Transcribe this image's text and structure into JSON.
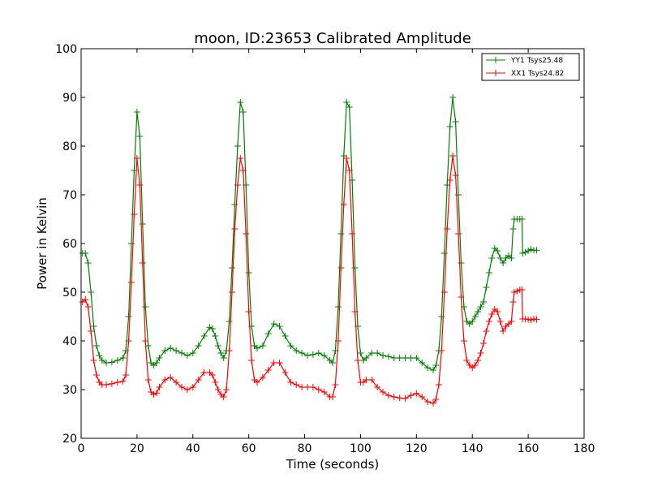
{
  "chart_data": {
    "type": "line",
    "title": "moon, ID:23653 Calibrated Amplitude",
    "xlabel": "Time (seconds)",
    "ylabel": "Power in Kelvin",
    "xlim": [
      0,
      180
    ],
    "ylim": [
      20,
      100
    ],
    "xticks": [
      "0",
      "20",
      "40",
      "60",
      "80",
      "100",
      "120",
      "140",
      "160",
      "180"
    ],
    "yticks": [
      "20",
      "30",
      "40",
      "50",
      "60",
      "70",
      "80",
      "90",
      "100"
    ],
    "grid": false,
    "legend": "top-right",
    "marker": "+",
    "series": [
      {
        "name": "YY1 Tsys25.48",
        "color": "#008000",
        "points": [
          [
            0.5,
            58
          ],
          [
            1.5,
            58
          ],
          [
            2.5,
            56
          ],
          [
            3.5,
            50
          ],
          [
            4.5,
            43
          ],
          [
            5.5,
            39
          ],
          [
            6.5,
            37
          ],
          [
            7.5,
            36
          ],
          [
            9,
            35.5
          ],
          [
            11,
            35.6
          ],
          [
            13,
            36
          ],
          [
            15,
            36.5
          ],
          [
            16,
            38
          ],
          [
            17,
            45
          ],
          [
            18,
            60
          ],
          [
            19,
            75
          ],
          [
            20,
            87
          ],
          [
            21,
            82
          ],
          [
            22,
            64
          ],
          [
            23,
            47
          ],
          [
            24,
            39
          ],
          [
            25,
            35.5
          ],
          [
            26,
            35
          ],
          [
            27,
            35.5
          ],
          [
            28,
            36.5
          ],
          [
            30,
            38
          ],
          [
            32,
            38.5
          ],
          [
            34,
            38
          ],
          [
            36,
            37.5
          ],
          [
            38,
            37
          ],
          [
            40,
            37.5
          ],
          [
            42,
            39
          ],
          [
            44,
            41
          ],
          [
            46,
            42.8
          ],
          [
            47,
            42.5
          ],
          [
            48,
            41
          ],
          [
            49,
            39
          ],
          [
            50,
            37.5
          ],
          [
            51,
            36.5
          ],
          [
            52,
            38
          ],
          [
            53,
            44
          ],
          [
            54,
            55
          ],
          [
            55,
            68
          ],
          [
            56,
            80
          ],
          [
            57,
            89
          ],
          [
            58,
            87
          ],
          [
            59,
            72
          ],
          [
            60,
            54
          ],
          [
            61,
            43
          ],
          [
            62,
            39
          ],
          [
            63,
            38.5
          ],
          [
            65,
            39
          ],
          [
            67,
            41.5
          ],
          [
            69,
            43.5
          ],
          [
            71,
            43
          ],
          [
            73,
            41
          ],
          [
            75,
            39
          ],
          [
            77,
            38
          ],
          [
            79,
            37.5
          ],
          [
            81,
            37
          ],
          [
            83,
            37.2
          ],
          [
            85,
            37.5
          ],
          [
            87,
            37
          ],
          [
            89,
            36
          ],
          [
            90,
            35.5
          ],
          [
            91,
            38
          ],
          [
            92,
            47
          ],
          [
            93,
            62
          ],
          [
            94,
            78
          ],
          [
            95,
            89
          ],
          [
            96,
            88
          ],
          [
            97,
            73
          ],
          [
            98,
            55
          ],
          [
            99,
            43
          ],
          [
            100,
            37.5
          ],
          [
            101,
            36
          ],
          [
            102,
            36.5
          ],
          [
            104,
            37.5
          ],
          [
            106,
            37.5
          ],
          [
            108,
            37
          ],
          [
            110,
            36.8
          ],
          [
            112,
            36.5
          ],
          [
            114,
            36.5
          ],
          [
            116,
            36.5
          ],
          [
            118,
            36.5
          ],
          [
            120,
            36.5
          ],
          [
            122,
            35.5
          ],
          [
            124,
            34.5
          ],
          [
            126,
            34
          ],
          [
            127,
            35
          ],
          [
            128,
            38
          ],
          [
            129,
            45
          ],
          [
            130,
            58
          ],
          [
            131,
            72
          ],
          [
            132,
            84
          ],
          [
            133,
            90
          ],
          [
            134,
            85
          ],
          [
            135,
            70
          ],
          [
            136,
            56
          ],
          [
            137,
            47
          ],
          [
            138,
            44
          ],
          [
            139,
            43.5
          ],
          [
            140,
            44
          ],
          [
            141,
            45
          ],
          [
            142,
            46
          ],
          [
            143,
            47
          ],
          [
            144,
            48
          ],
          [
            145,
            51
          ],
          [
            146,
            54
          ],
          [
            147,
            57
          ],
          [
            148,
            59
          ],
          [
            149,
            58.5
          ],
          [
            150,
            57
          ],
          [
            151,
            56
          ],
          [
            152,
            57
          ],
          [
            153,
            57.5
          ],
          [
            154,
            57
          ],
          [
            154.6,
            63
          ],
          [
            155,
            65
          ],
          [
            156,
            65
          ],
          [
            157,
            65
          ],
          [
            157.8,
            65
          ],
          [
            158,
            58
          ],
          [
            159,
            58.2
          ],
          [
            160,
            58.5
          ],
          [
            161,
            58.8
          ],
          [
            162,
            58.6
          ],
          [
            163,
            58.6
          ]
        ]
      },
      {
        "name": "XX1 Tsys24.82",
        "color": "#ff0000",
        "points": [
          [
            0.5,
            48
          ],
          [
            1.5,
            48.5
          ],
          [
            2.5,
            47
          ],
          [
            3.5,
            42
          ],
          [
            4.5,
            36
          ],
          [
            5.5,
            33
          ],
          [
            6.5,
            31.5
          ],
          [
            7.5,
            31
          ],
          [
            9,
            31
          ],
          [
            11,
            31.2
          ],
          [
            13,
            31.5
          ],
          [
            15,
            31.7
          ],
          [
            16,
            33
          ],
          [
            17,
            40
          ],
          [
            18,
            52
          ],
          [
            19,
            66
          ],
          [
            20,
            77.5
          ],
          [
            21,
            72
          ],
          [
            22,
            56
          ],
          [
            23,
            40
          ],
          [
            24,
            32
          ],
          [
            25,
            29.5
          ],
          [
            26,
            29
          ],
          [
            27,
            29.3
          ],
          [
            28,
            30.5
          ],
          [
            30,
            32
          ],
          [
            32,
            32.5
          ],
          [
            34,
            31.5
          ],
          [
            36,
            30.5
          ],
          [
            38,
            30
          ],
          [
            40,
            30.5
          ],
          [
            42,
            32
          ],
          [
            44,
            33.5
          ],
          [
            46,
            33.5
          ],
          [
            47,
            33
          ],
          [
            48,
            31.5
          ],
          [
            49,
            30
          ],
          [
            50,
            29
          ],
          [
            51,
            28.5
          ],
          [
            52,
            30
          ],
          [
            53,
            38
          ],
          [
            54,
            50
          ],
          [
            55,
            63
          ],
          [
            56,
            72
          ],
          [
            57,
            77.5
          ],
          [
            58,
            75
          ],
          [
            59,
            62
          ],
          [
            60,
            46
          ],
          [
            61,
            36
          ],
          [
            62,
            32
          ],
          [
            63,
            31.5
          ],
          [
            65,
            32.5
          ],
          [
            67,
            34
          ],
          [
            69,
            35.5
          ],
          [
            71,
            35.5
          ],
          [
            73,
            33.5
          ],
          [
            75,
            31.5
          ],
          [
            77,
            31
          ],
          [
            79,
            30.5
          ],
          [
            81,
            30.5
          ],
          [
            83,
            30.5
          ],
          [
            85,
            30
          ],
          [
            87,
            29.5
          ],
          [
            89,
            28.5
          ],
          [
            90,
            28.5
          ],
          [
            91,
            31
          ],
          [
            92,
            40
          ],
          [
            93,
            55
          ],
          [
            94,
            68
          ],
          [
            95,
            77.5
          ],
          [
            96,
            75
          ],
          [
            97,
            62
          ],
          [
            98,
            46
          ],
          [
            99,
            36
          ],
          [
            100,
            31.5
          ],
          [
            101,
            31.5
          ],
          [
            102,
            32
          ],
          [
            104,
            32
          ],
          [
            106,
            30.5
          ],
          [
            108,
            29.5
          ],
          [
            110,
            28.8
          ],
          [
            112,
            28.5
          ],
          [
            114,
            28.3
          ],
          [
            116,
            28.2
          ],
          [
            118,
            28.8
          ],
          [
            120,
            29.2
          ],
          [
            122,
            28.5
          ],
          [
            124,
            27.5
          ],
          [
            126,
            27.2
          ],
          [
            127,
            28
          ],
          [
            128,
            31
          ],
          [
            129,
            38
          ],
          [
            130,
            50
          ],
          [
            131,
            63
          ],
          [
            132,
            73
          ],
          [
            133,
            78
          ],
          [
            134,
            74
          ],
          [
            135,
            62
          ],
          [
            136,
            49
          ],
          [
            137,
            40
          ],
          [
            138,
            36
          ],
          [
            139,
            35
          ],
          [
            140,
            34.5
          ],
          [
            141,
            35
          ],
          [
            142,
            36
          ],
          [
            143,
            37.5
          ],
          [
            144,
            39.5
          ],
          [
            145,
            42
          ],
          [
            146,
            44
          ],
          [
            147,
            45.5
          ],
          [
            148,
            46.5
          ],
          [
            149,
            46
          ],
          [
            150,
            44
          ],
          [
            151,
            42
          ],
          [
            152,
            43
          ],
          [
            153,
            43.5
          ],
          [
            154,
            44
          ],
          [
            154.6,
            48
          ],
          [
            155,
            50
          ],
          [
            156,
            50.2
          ],
          [
            157,
            50.5
          ],
          [
            157.8,
            50.5
          ],
          [
            158,
            44.5
          ],
          [
            159,
            44.5
          ],
          [
            160,
            44.4
          ],
          [
            161,
            44.3
          ],
          [
            162,
            44.5
          ],
          [
            163,
            44.4
          ]
        ]
      }
    ]
  }
}
